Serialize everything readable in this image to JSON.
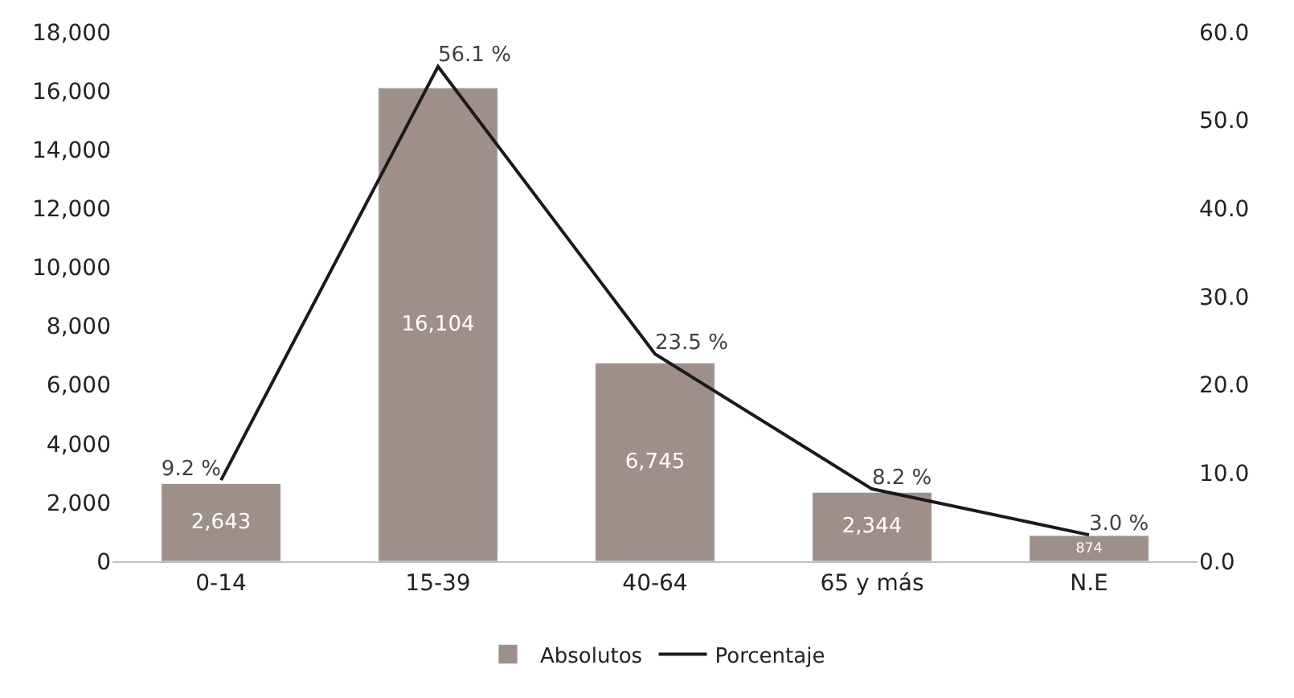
{
  "chart_data": {
    "type": "bar",
    "categories": [
      "0-14",
      "15-39",
      "40-64",
      "65 y más",
      "N.E"
    ],
    "series": [
      {
        "name": "Absolutos",
        "color": "#9e8f89",
        "values": [
          2643,
          16104,
          6745,
          2344,
          874
        ],
        "value_labels": [
          "2,643",
          "16,104",
          "6,745",
          "2,344",
          "874"
        ]
      },
      {
        "name": "Porcentaje",
        "type": "line",
        "axis": "y2",
        "color": "#1a1a1a",
        "values": [
          9.2,
          56.1,
          23.5,
          8.2,
          3.0
        ],
        "value_labels": [
          "9.2 %",
          "56.1 %",
          "23.5 %",
          "8.2 %",
          "3.0 %"
        ],
        "marker": "none",
        "line_style": "solid"
      }
    ],
    "ylim": [
      0,
      18000
    ],
    "yticks": [
      {
        "value": 0,
        "label": "0"
      },
      {
        "value": 2000,
        "label": "2,000"
      },
      {
        "value": 4000,
        "label": "4,000"
      },
      {
        "value": 6000,
        "label": "6,000"
      },
      {
        "value": 8000,
        "label": "8,000"
      },
      {
        "value": 10000,
        "label": "10,000"
      },
      {
        "value": 12000,
        "label": "12,000"
      },
      {
        "value": 14000,
        "label": "14,000"
      },
      {
        "value": 16000,
        "label": "16,000"
      },
      {
        "value": 18000,
        "label": "18,000"
      }
    ],
    "y2lim": [
      0,
      60
    ],
    "y2ticks": [
      {
        "value": 0,
        "label": "0.0"
      },
      {
        "value": 10,
        "label": "10.0"
      },
      {
        "value": 20,
        "label": "20.0"
      },
      {
        "value": 30,
        "label": "30.0"
      },
      {
        "value": 40,
        "label": "40.0"
      },
      {
        "value": 50,
        "label": "50.0"
      },
      {
        "value": 60,
        "label": "60.0"
      }
    ],
    "legend": "bottom"
  }
}
